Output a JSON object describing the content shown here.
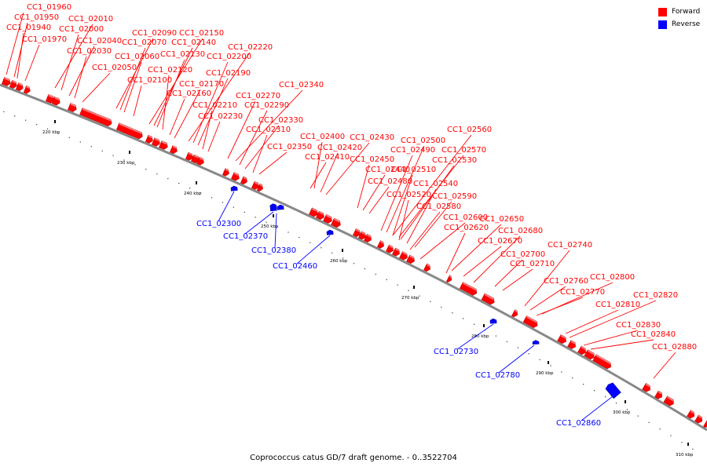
{
  "footer": "Coprococcus catus GD/7 draft genome. - 0..3522704",
  "legend": [
    {
      "label": "Forward",
      "color": "#ff0000"
    },
    {
      "label": "Reverse",
      "color": "#0000ff"
    }
  ],
  "colors": {
    "forward": "#ff0000",
    "reverse": "#0000ff",
    "backbone": "#888888"
  },
  "ticks": [
    "220 kbp",
    "230 kbp",
    "240 kbp",
    "250 kbp",
    "260 kbp",
    "270 kbp",
    "280 kbp",
    "290 kbp",
    "300 kbp",
    "310 kbp"
  ],
  "forward_genes": [
    "CC1_01960",
    "CC1_01950",
    "CC1_01940",
    "CC1_01970",
    "CC1_02010",
    "CC1_02000",
    "CC1_02040",
    "CC1_02030",
    "CC1_02050",
    "CC1_02090",
    "CC1_02070",
    "CC1_02060",
    "CC1_02100",
    "CC1_02150",
    "CC1_02140",
    "CC1_02130",
    "CC1_02120",
    "CC1_02220",
    "CC1_02200",
    "CC1_02190",
    "CC1_02170",
    "CC1_02160",
    "CC1_02340",
    "CC1_02270",
    "CC1_02290",
    "CC1_02210",
    "CC1_02230",
    "CC1_02330",
    "CC1_02310",
    "CC1_02350",
    "CC1_02400",
    "CC1_02430",
    "CC1_02420",
    "CC1_02410",
    "CC1_02450",
    "CC1_02440",
    "CC1_02480",
    "CC1_02560",
    "CC1_02500",
    "CC1_02490",
    "CC1_02570",
    "CC1_02530",
    "CC1_02510",
    "CC1_02540",
    "CC1_02520",
    "CC1_02590",
    "CC1_02580",
    "CC1_02600",
    "CC1_02650",
    "CC1_02620",
    "CC1_02680",
    "CC1_02670",
    "CC1_02740",
    "CC1_02700",
    "CC1_02710",
    "CC1_02800",
    "CC1_02760",
    "CC1_02770",
    "CC1_02820",
    "CC1_02810",
    "CC1_02830",
    "CC1_02840",
    "CC1_02880"
  ],
  "reverse_genes": [
    "CC1_02300",
    "CC1_02370",
    "CC1_02380",
    "CC1_02460",
    "CC1_02730",
    "CC1_02780",
    "CC1_02860"
  ]
}
